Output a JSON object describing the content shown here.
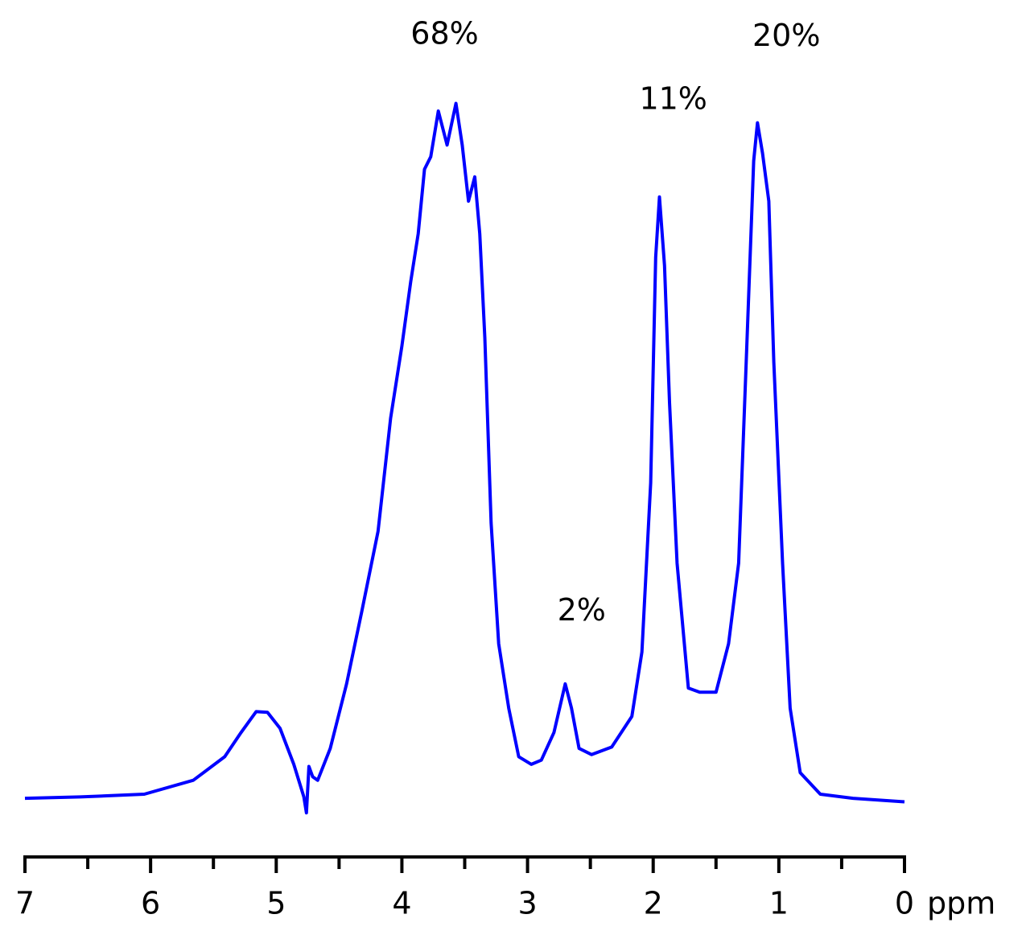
{
  "chart_data": {
    "type": "line",
    "x_label": "ppm",
    "xlim": [
      7,
      0
    ],
    "xticks": [
      7,
      6,
      5,
      4,
      3,
      2,
      1,
      0
    ],
    "xminorticks": [
      6.5,
      5.5,
      4.5,
      3.5,
      2.5,
      1.5,
      0.5
    ],
    "ylim": [
      -3,
      110
    ],
    "color": "#0000ff",
    "x": [
      7.0,
      6.56,
      6.05,
      5.66,
      5.41,
      5.28,
      5.16,
      5.07,
      4.97,
      4.86,
      4.78,
      4.76,
      4.74,
      4.71,
      4.67,
      4.57,
      4.44,
      4.32,
      4.19,
      4.09,
      4.0,
      3.93,
      3.87,
      3.82,
      3.77,
      3.71,
      3.64,
      3.57,
      3.52,
      3.47,
      3.42,
      3.38,
      3.34,
      3.29,
      3.23,
      3.15,
      3.07,
      2.97,
      2.89,
      2.79,
      2.7,
      2.65,
      2.59,
      2.49,
      2.33,
      2.17,
      2.09,
      2.02,
      1.98,
      1.95,
      1.91,
      1.87,
      1.81,
      1.72,
      1.63,
      1.5,
      1.4,
      1.32,
      1.26,
      1.2,
      1.17,
      1.13,
      1.08,
      1.04,
      0.97,
      0.91,
      0.83,
      0.67,
      0.41,
      0.0
    ],
    "values": [
      0,
      0.2,
      0.6,
      2.6,
      6.0,
      9.5,
      12.5,
      12.4,
      10.1,
      4.9,
      0.2,
      -2.1,
      4.6,
      3.1,
      2.6,
      7.2,
      16.5,
      26.9,
      38.5,
      54.8,
      65.2,
      74.5,
      81.4,
      90.7,
      92.5,
      99.1,
      94.2,
      100.2,
      94.2,
      86.1,
      89.6,
      81.4,
      66.4,
      39.7,
      22.3,
      13.0,
      6.0,
      4.9,
      5.5,
      9.5,
      16.5,
      13.0,
      7.2,
      6.3,
      7.4,
      11.8,
      21.1,
      45.5,
      78.0,
      86.7,
      76.8,
      57.1,
      33.9,
      15.9,
      15.3,
      15.3,
      22.3,
      33.9,
      62.9,
      91.9,
      97.4,
      93.0,
      86.1,
      62.9,
      33.9,
      13.0,
      3.7,
      0.6,
      0,
      -0.5
    ],
    "annotations": [
      {
        "text": "68%",
        "x": 3.66,
        "y": 110
      },
      {
        "text": "11%",
        "x": 1.84,
        "y": 100.6
      },
      {
        "text": "2%",
        "x": 2.57,
        "y": 26.9
      },
      {
        "text": "20%",
        "x": 0.94,
        "y": 109.7
      }
    ]
  }
}
